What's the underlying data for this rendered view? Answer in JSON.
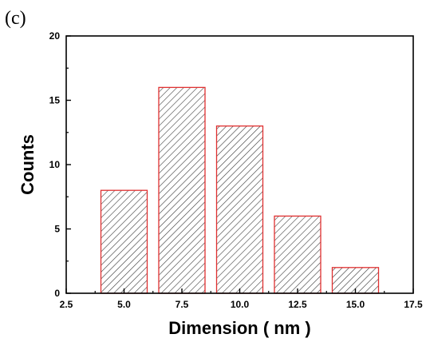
{
  "panel_label": "(c)",
  "colors": {
    "bar_stroke": "#e03030",
    "hatch": "#3a3a3a",
    "axis": "#000000",
    "background": "#ffffff"
  },
  "chart_data": {
    "type": "bar",
    "title": "",
    "xlabel": "Dimension ( nm )",
    "ylabel": "Counts",
    "xlim": [
      2.5,
      17.5
    ],
    "ylim": [
      0,
      20
    ],
    "x": [
      5.0,
      7.5,
      10.0,
      12.5,
      15.0
    ],
    "values": [
      8,
      16,
      13,
      6,
      2
    ],
    "bar_width": 2.0,
    "bar_fill": "hatched",
    "xticks": [
      "2.5",
      "5.0",
      "7.5",
      "10.0",
      "12.5",
      "15.0",
      "17.5"
    ],
    "xtick_values": [
      2.5,
      5.0,
      7.5,
      10.0,
      12.5,
      15.0,
      17.5
    ],
    "yticks": [
      "0",
      "5",
      "10",
      "15",
      "20"
    ],
    "ytick_values": [
      0,
      5,
      10,
      15,
      20
    ],
    "grid": false,
    "legend": "none"
  }
}
